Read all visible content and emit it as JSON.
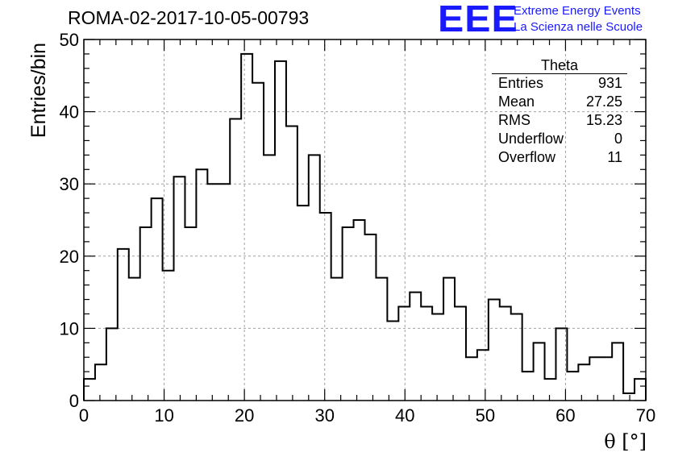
{
  "header": {
    "run_title": "ROMA-02-2017-10-05-00793",
    "logo_letters": "EEE",
    "logo_line1": "Extreme Energy Events",
    "logo_line2": "La Scienza nelle Scuole"
  },
  "stats_box": {
    "name": "Theta",
    "rows": [
      {
        "label": "Entries",
        "value": "931"
      },
      {
        "label": "Mean",
        "value": "27.25"
      },
      {
        "label": "RMS",
        "value": "15.23"
      },
      {
        "label": "Underflow",
        "value": "0"
      },
      {
        "label": "Overflow",
        "value": "11"
      }
    ]
  },
  "chart_data": {
    "type": "bar",
    "style": "step-histogram",
    "xlabel": "θ [°]",
    "ylabel": "Entries/bin",
    "xlim": [
      0,
      70
    ],
    "ylim": [
      0,
      50
    ],
    "grid": true,
    "x_ticks": [
      0,
      10,
      20,
      30,
      40,
      50,
      60,
      70
    ],
    "y_ticks": [
      0,
      10,
      20,
      30,
      40,
      50
    ],
    "bin_width": 1.4,
    "bin_low_edges": [
      0,
      1.4,
      2.8,
      4.2,
      5.6,
      7.0,
      8.4,
      9.8,
      11.2,
      12.6,
      14.0,
      15.4,
      16.8,
      18.2,
      19.6,
      21.0,
      22.4,
      23.8,
      25.2,
      26.6,
      28.0,
      29.4,
      30.8,
      32.2,
      33.6,
      35.0,
      36.4,
      37.8,
      39.2,
      40.6,
      42.0,
      43.4,
      44.8,
      46.2,
      47.6,
      49.0,
      50.4,
      51.8,
      53.2,
      54.6,
      56.0,
      57.4,
      58.8,
      60.2,
      61.6,
      63.0,
      64.4,
      65.8,
      67.2,
      68.6
    ],
    "counts": [
      3,
      5,
      10,
      21,
      17,
      24,
      28,
      18,
      31,
      24,
      32,
      30,
      30,
      39,
      48,
      44,
      34,
      47,
      38,
      27,
      34,
      26,
      17,
      24,
      25,
      23,
      17,
      11,
      13,
      15,
      13,
      12,
      17,
      13,
      6,
      7,
      14,
      13,
      12,
      4,
      8,
      3,
      10,
      4,
      5,
      6,
      6,
      8,
      1,
      3
    ]
  }
}
